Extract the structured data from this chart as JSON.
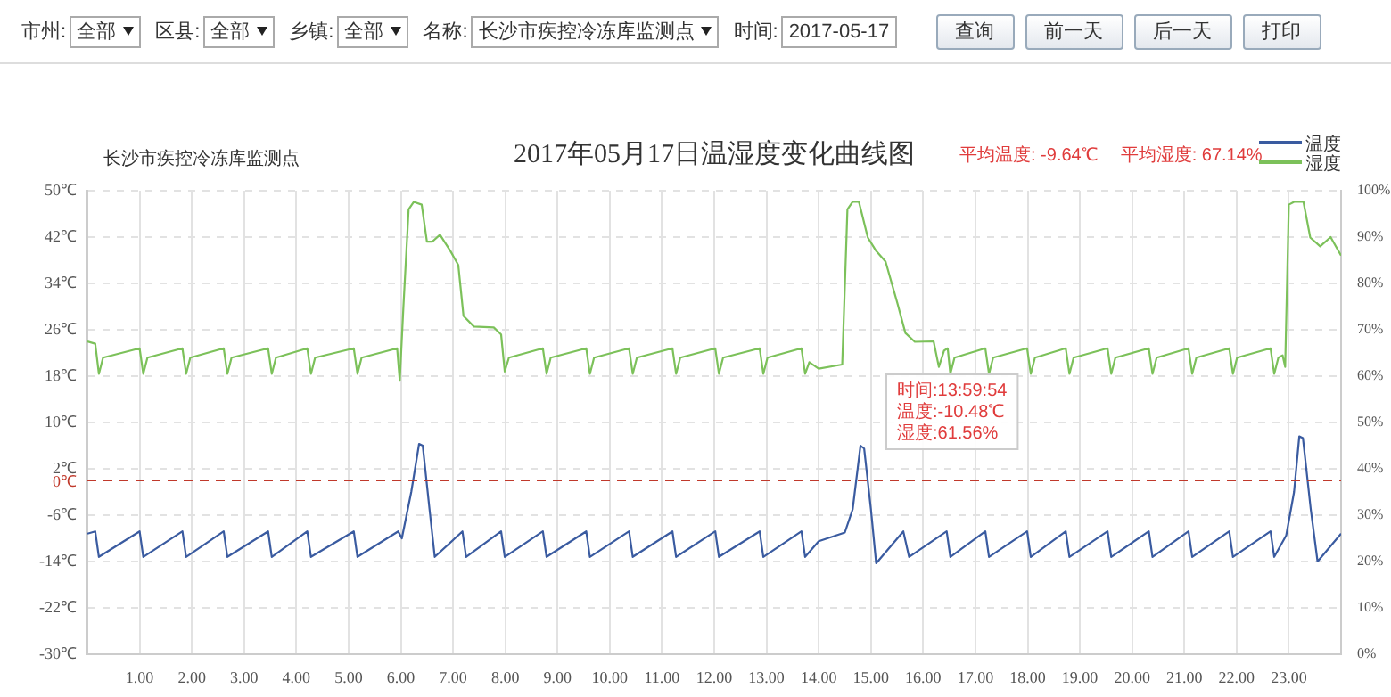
{
  "chart_data": {
    "type": "line",
    "title": "2017年05月17日温湿度变化曲线图",
    "subtitle": "长沙市疾控冷冻库监测点",
    "legend": "top right",
    "grid": true,
    "marker": "none",
    "line_style": "solid",
    "xlim": [
      0,
      24
    ],
    "xticks": [
      {
        "value": 1,
        "label": "1.00"
      },
      {
        "value": 2,
        "label": "2.00"
      },
      {
        "value": 3,
        "label": "3.00"
      },
      {
        "value": 4,
        "label": "4.00"
      },
      {
        "value": 5,
        "label": "5.00"
      },
      {
        "value": 6,
        "label": "6.00"
      },
      {
        "value": 7,
        "label": "7.00"
      },
      {
        "value": 8,
        "label": "8.00"
      },
      {
        "value": 9,
        "label": "9.00"
      },
      {
        "value": 10,
        "label": "10.00"
      },
      {
        "value": 11,
        "label": "11.00"
      },
      {
        "value": 12,
        "label": "12.00"
      },
      {
        "value": 13,
        "label": "13.00"
      },
      {
        "value": 14,
        "label": "14.00"
      },
      {
        "value": 15,
        "label": "15.00"
      },
      {
        "value": 16,
        "label": "16.00"
      },
      {
        "value": 17,
        "label": "17.00"
      },
      {
        "value": 18,
        "label": "18.00"
      },
      {
        "value": 19,
        "label": "19.00"
      },
      {
        "value": 20,
        "label": "20.00"
      },
      {
        "value": 21,
        "label": "21.00"
      },
      {
        "value": 22,
        "label": "22.00"
      },
      {
        "value": 23,
        "label": "23.00"
      }
    ],
    "ylim": [
      -30,
      50
    ],
    "yticks": [
      {
        "value": -30,
        "label": "-30℃"
      },
      {
        "value": -22,
        "label": "-22℃"
      },
      {
        "value": -14,
        "label": "-14℃"
      },
      {
        "value": -6,
        "label": "-6℃"
      },
      {
        "value": 2,
        "label": "2℃"
      },
      {
        "value": 10,
        "label": "10℃"
      },
      {
        "value": 18,
        "label": "18℃"
      },
      {
        "value": 26,
        "label": "26℃"
      },
      {
        "value": 34,
        "label": "34℃"
      },
      {
        "value": 42,
        "label": "42℃"
      },
      {
        "value": 50,
        "label": "50℃"
      }
    ],
    "y2lim": [
      0,
      100
    ],
    "y2ticks": [
      {
        "value": 0,
        "label": "0%"
      },
      {
        "value": 10,
        "label": "10%"
      },
      {
        "value": 20,
        "label": "20%"
      },
      {
        "value": 30,
        "label": "30%"
      },
      {
        "value": 40,
        "label": "40%"
      },
      {
        "value": 50,
        "label": "50%"
      },
      {
        "value": 60,
        "label": "60%"
      },
      {
        "value": 70,
        "label": "70%"
      },
      {
        "value": 80,
        "label": "80%"
      },
      {
        "value": 90,
        "label": "90%"
      },
      {
        "value": 100,
        "label": "100%"
      }
    ],
    "ref_lines": [
      {
        "axis": "y",
        "value": 0,
        "label": "0℃",
        "color": "#c0392b",
        "line_style": "dashed"
      }
    ],
    "series": [
      {
        "name": "温度",
        "color": "#3a5ba0",
        "x": [
          0,
          0.15,
          0.22,
          1.0,
          1.07,
          1.82,
          1.89,
          2.61,
          2.68,
          3.46,
          3.53,
          4.21,
          4.28,
          5.1,
          5.17,
          5.95,
          6.02,
          6.2,
          6.35,
          6.42,
          6.55,
          6.65,
          7.18,
          7.25,
          7.92,
          7.99,
          8.72,
          8.79,
          9.55,
          9.62,
          10.37,
          10.44,
          11.2,
          11.27,
          12.02,
          12.09,
          12.87,
          12.94,
          13.67,
          13.74,
          14.0,
          14.5,
          14.65,
          14.8,
          14.87,
          15.0,
          15.1,
          15.62,
          15.73,
          16.45,
          16.52,
          17.19,
          17.26,
          17.99,
          18.06,
          18.73,
          18.8,
          19.53,
          19.6,
          20.32,
          20.39,
          21.08,
          21.15,
          21.86,
          21.93,
          22.65,
          22.72,
          22.95,
          23.1,
          23.2,
          23.27,
          23.42,
          23.55,
          24
        ],
        "values": [
          -9.2,
          -8.8,
          -13.2,
          -8.8,
          -13.2,
          -8.8,
          -13.2,
          -8.8,
          -13.2,
          -8.8,
          -13.2,
          -8.8,
          -13.2,
          -8.8,
          -13.2,
          -8.8,
          -10,
          -2,
          6.3,
          6,
          -5,
          -13.2,
          -8.8,
          -13.2,
          -8.8,
          -13.2,
          -8.8,
          -13.2,
          -8.8,
          -13.2,
          -8.8,
          -13.2,
          -8.8,
          -13.2,
          -8.8,
          -13.2,
          -8.8,
          -13.2,
          -8.8,
          -13.2,
          -10.5,
          -9,
          -5,
          6,
          5.5,
          -5,
          -14.3,
          -8.8,
          -13.2,
          -8.8,
          -13.2,
          -8.8,
          -13.2,
          -8.8,
          -13.2,
          -8.8,
          -13.2,
          -8.8,
          -13.2,
          -8.8,
          -13.2,
          -8.8,
          -13.2,
          -8.8,
          -13.2,
          -8.8,
          -13.2,
          -9.5,
          -2,
          7.6,
          7.3,
          -5,
          -14,
          -9.2
        ]
      },
      {
        "name": "湿度",
        "color": "#7cc15a",
        "axis": "y2",
        "x": [
          0,
          0.15,
          0.22,
          0.3,
          1.0,
          1.07,
          1.15,
          1.82,
          1.89,
          1.97,
          2.61,
          2.68,
          2.76,
          3.46,
          3.53,
          3.61,
          4.21,
          4.28,
          4.36,
          5.1,
          5.17,
          5.25,
          5.93,
          5.98,
          6.05,
          6.15,
          6.25,
          6.4,
          6.5,
          6.6,
          6.75,
          6.95,
          7.1,
          7.2,
          7.4,
          7.78,
          7.92,
          7.99,
          8.07,
          8.72,
          8.79,
          8.87,
          9.55,
          9.62,
          9.7,
          10.37,
          10.44,
          10.52,
          11.2,
          11.27,
          11.35,
          12.02,
          12.09,
          12.17,
          12.87,
          12.94,
          13.02,
          13.67,
          13.74,
          13.82,
          14.0,
          14.45,
          14.55,
          14.65,
          14.77,
          14.94,
          15.1,
          15.28,
          15.5,
          15.66,
          15.84,
          16.2,
          16.3,
          16.4,
          16.47,
          16.52,
          16.6,
          17.19,
          17.26,
          17.34,
          17.99,
          18.06,
          18.14,
          18.73,
          18.8,
          18.88,
          19.53,
          19.6,
          19.68,
          20.32,
          20.39,
          20.47,
          21.08,
          21.15,
          21.23,
          21.86,
          21.93,
          22.01,
          22.65,
          22.72,
          22.8,
          22.88,
          22.93,
          23.0,
          23.1,
          23.28,
          23.41,
          23.6,
          23.8,
          24
        ],
        "values": [
          67.5,
          67,
          60.5,
          64,
          66,
          60.5,
          64,
          66,
          60.5,
          64,
          66,
          60.5,
          64,
          66,
          60.5,
          64,
          66,
          60.5,
          64,
          66,
          60.5,
          64,
          66,
          59,
          75,
          96,
          97.6,
          97,
          89,
          89,
          90.5,
          87,
          84,
          73,
          70.7,
          70.5,
          69,
          61,
          64,
          66,
          60.5,
          64,
          66,
          60.5,
          64,
          66,
          60.5,
          64,
          66,
          60.5,
          64,
          66,
          60.5,
          64,
          66,
          60.5,
          64,
          66,
          60.5,
          63,
          61.6,
          62.5,
          96,
          97.6,
          97.6,
          89.9,
          87,
          84.7,
          76,
          69.3,
          67.4,
          67.5,
          62,
          65.5,
          66,
          60.5,
          64,
          66,
          60.5,
          64,
          66,
          60.5,
          64,
          66,
          60.5,
          64,
          66,
          60.5,
          64,
          66,
          60.5,
          64,
          66,
          60.5,
          64,
          66,
          60.5,
          64,
          66,
          60.5,
          64,
          64.5,
          62,
          97,
          97.6,
          97.6,
          89.9,
          88,
          90,
          86
        ]
      }
    ],
    "annotations": [
      "平均温度: -9.64℃",
      "平均湿度: 67.14%",
      "时间:13:59:54\n温度:-10.48℃\n湿度:61.56%",
      "市州:",
      "全部",
      "区县:",
      "全部",
      "乡镇:",
      "全部",
      "名称:",
      "长沙市疾控冷冻库监测点",
      "时间:",
      "2017-05-17",
      "查询",
      "前一天",
      "后一天",
      "打印"
    ]
  }
}
